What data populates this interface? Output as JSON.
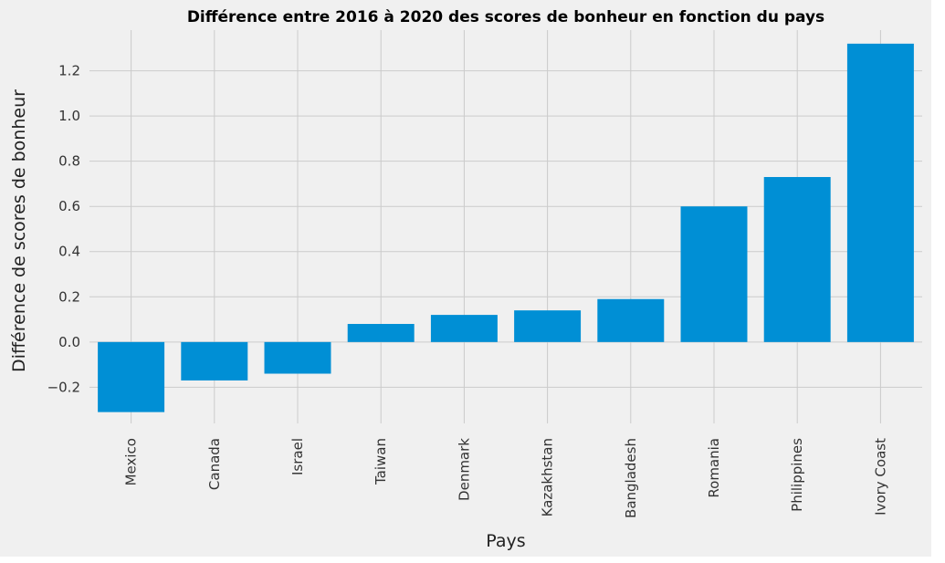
{
  "chart_data": {
    "type": "bar",
    "title": "Différence entre 2016 à 2020 des scores de bonheur en fonction du pays",
    "xlabel": "Pays",
    "ylabel": "Différence de scores de bonheur",
    "categories": [
      "Mexico",
      "Canada",
      "Israel",
      "Taiwan",
      "Denmark",
      "Kazakhstan",
      "Bangladesh",
      "Romania",
      "Philippines",
      "Ivory Coast"
    ],
    "values": [
      -0.31,
      -0.17,
      -0.14,
      0.08,
      0.12,
      0.14,
      0.19,
      0.6,
      0.73,
      1.32
    ],
    "ylim": [
      -0.36,
      1.38
    ],
    "yticks": [
      -0.2,
      0.0,
      0.2,
      0.4,
      0.6,
      0.8,
      1.0,
      1.2
    ],
    "ytick_labels": [
      "−0.2",
      "0.0",
      "0.2",
      "0.4",
      "0.6",
      "0.8",
      "1.0",
      "1.2"
    ],
    "grid": true,
    "bar_color": "#008fd5",
    "background_color": "#f0f0f0",
    "grid_color": "#cbcbcb"
  }
}
